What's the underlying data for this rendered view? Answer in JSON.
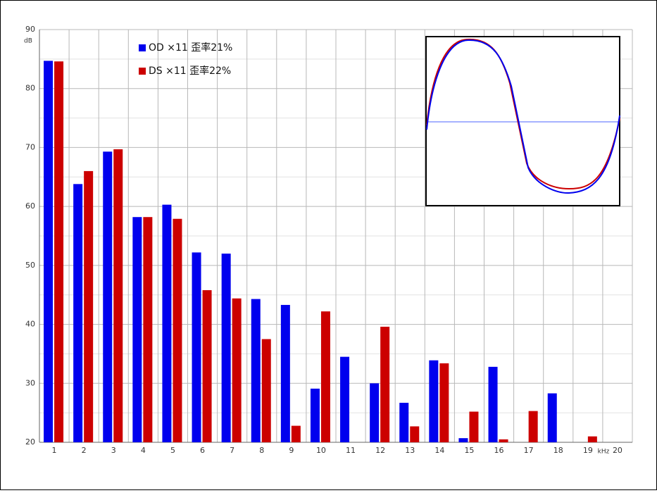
{
  "chart_data": {
    "type": "bar",
    "y_label": "dB",
    "x_label": "kHz",
    "categories": [
      "1",
      "2",
      "3",
      "4",
      "5",
      "6",
      "7",
      "8",
      "9",
      "10",
      "11",
      "12",
      "13",
      "14",
      "15",
      "16",
      "17",
      "18",
      "19",
      "20"
    ],
    "series": [
      {
        "name": "OD ×11 歪率21%",
        "color": "#0000ee",
        "values": [
          84.7,
          63.8,
          69.3,
          58.2,
          60.3,
          52.2,
          52.0,
          44.3,
          43.3,
          29.1,
          34.5,
          30.0,
          26.7,
          33.9,
          20.7,
          32.8,
          null,
          28.3,
          null,
          null
        ]
      },
      {
        "name": "DS ×11 歪率22%",
        "color": "#cc0000",
        "values": [
          84.6,
          66.0,
          69.7,
          58.2,
          57.9,
          45.8,
          44.4,
          37.5,
          22.8,
          42.2,
          null,
          39.6,
          22.7,
          33.4,
          25.2,
          20.5,
          25.3,
          null,
          21.0,
          null
        ]
      }
    ],
    "ylim": [
      20,
      90
    ],
    "yticks": [
      20,
      30,
      40,
      50,
      60,
      70,
      80,
      90
    ],
    "grid": true,
    "minor_grid": true
  }
}
